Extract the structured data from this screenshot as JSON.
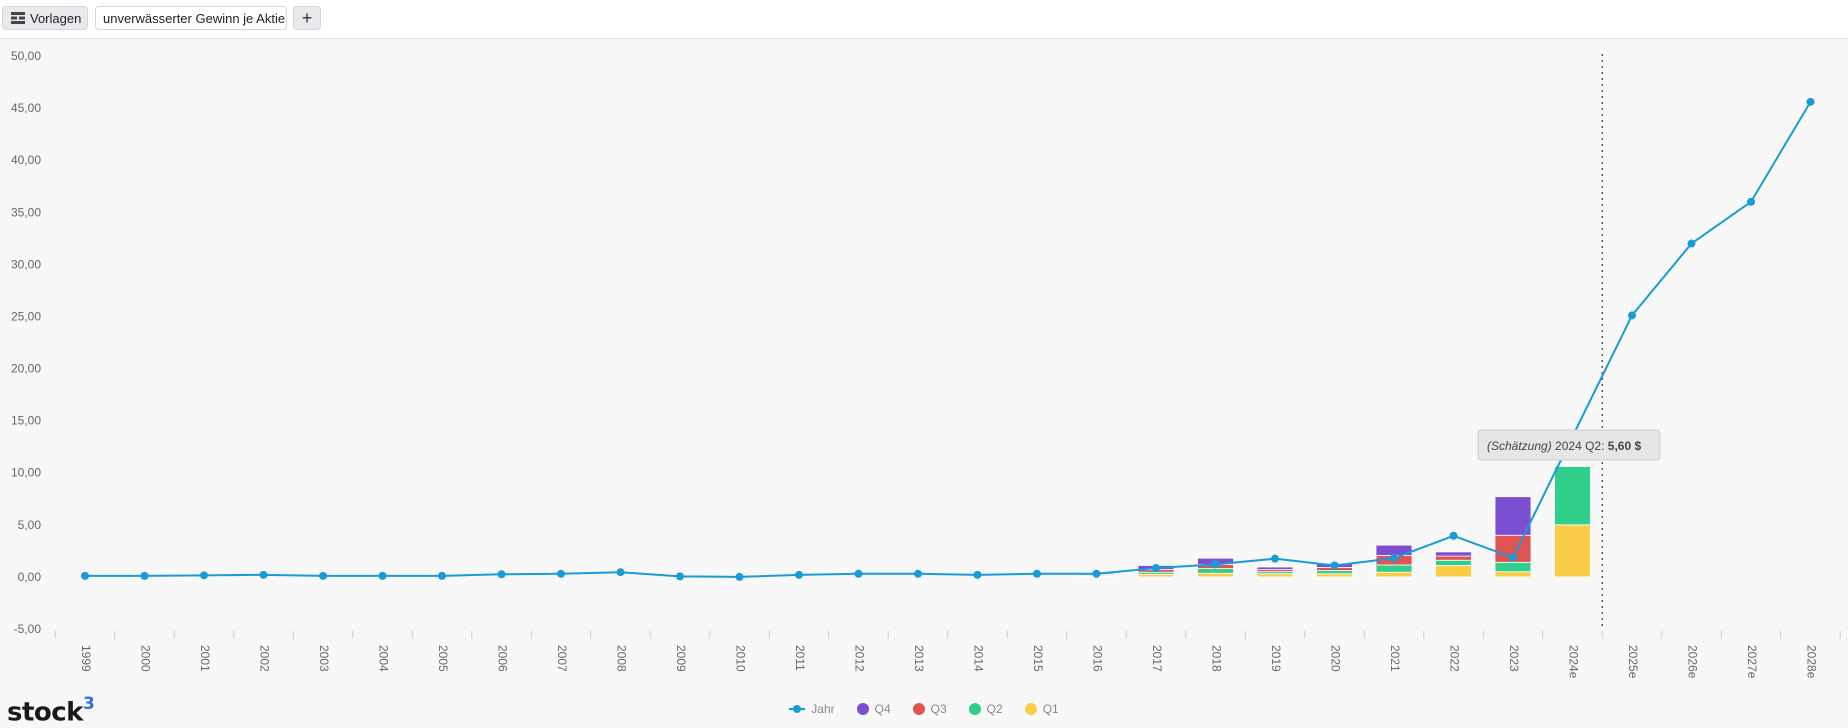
{
  "toolbar": {
    "templates_label": "Vorlagen",
    "metric_label": "unverwässerter Gewinn je Aktie",
    "add_label": "+"
  },
  "logo": {
    "text": "stock",
    "sup": "3"
  },
  "tooltip": {
    "prefix": "(Schätzung)",
    "label": "2024 Q2: ",
    "value": "5,60 $"
  },
  "colors": {
    "line": "#1a9bd7",
    "q4": "#7b4fd1",
    "q3": "#e05353",
    "q2": "#2fcf8b",
    "q1": "#fbcd47",
    "accent": "#2f6fe0"
  },
  "chart_data": {
    "type": "bar",
    "categories": [
      "1999",
      "2000",
      "2001",
      "2002",
      "2003",
      "2004",
      "2005",
      "2006",
      "2007",
      "2008",
      "2009",
      "2010",
      "2011",
      "2012",
      "2013",
      "2014",
      "2015",
      "2016",
      "2017",
      "2018",
      "2019",
      "2020",
      "2021",
      "2022",
      "2023",
      "2024e",
      "2025e",
      "2026e",
      "2027e",
      "2028e"
    ],
    "ylim": [
      -5,
      50
    ],
    "yticks": [
      "50,00",
      "45,00",
      "40,00",
      "35,00",
      "30,00",
      "25,00",
      "20,00",
      "15,00",
      "10,00",
      "5,00",
      "0,00",
      "-5,00"
    ],
    "ytick_values": [
      50,
      45,
      40,
      35,
      30,
      25,
      20,
      15,
      10,
      5,
      0,
      -5
    ],
    "forecast_divider_after": "2024e",
    "series": [
      {
        "name": "Jahr",
        "kind": "line",
        "values": [
          0.1,
          0.1,
          0.15,
          0.2,
          0.1,
          0.1,
          0.1,
          0.25,
          0.3,
          0.45,
          0.05,
          0.0,
          0.2,
          0.3,
          0.3,
          0.2,
          0.3,
          0.3,
          0.85,
          1.2,
          1.75,
          1.1,
          1.8,
          3.95,
          1.85,
          null,
          25.1,
          32.0,
          36.0,
          45.6
        ]
      },
      {
        "name": "Q1",
        "kind": "bar",
        "values": [
          null,
          null,
          null,
          null,
          null,
          null,
          null,
          null,
          null,
          null,
          null,
          null,
          null,
          null,
          null,
          null,
          null,
          0.05,
          0.25,
          0.35,
          0.3,
          0.3,
          0.45,
          1.1,
          0.5,
          5.0,
          null,
          null,
          null,
          null
        ]
      },
      {
        "name": "Q2",
        "kind": "bar",
        "values": [
          null,
          null,
          null,
          null,
          null,
          null,
          null,
          null,
          null,
          null,
          null,
          null,
          null,
          null,
          null,
          null,
          null,
          0.1,
          0.2,
          0.45,
          0.2,
          0.3,
          0.7,
          0.5,
          0.9,
          5.6,
          null,
          null,
          null,
          null
        ]
      },
      {
        "name": "Q3",
        "kind": "bar",
        "values": [
          null,
          null,
          null,
          null,
          null,
          null,
          null,
          null,
          null,
          null,
          null,
          null,
          null,
          null,
          null,
          null,
          null,
          0.1,
          0.25,
          0.4,
          0.2,
          0.3,
          0.9,
          0.4,
          2.6,
          null,
          null,
          null,
          null,
          null
        ]
      },
      {
        "name": "Q4",
        "kind": "bar",
        "values": [
          null,
          null,
          null,
          null,
          null,
          null,
          null,
          null,
          null,
          null,
          null,
          null,
          null,
          null,
          null,
          null,
          null,
          0.1,
          0.4,
          0.6,
          0.25,
          0.4,
          1.0,
          0.4,
          3.7,
          null,
          null,
          null,
          null,
          null
        ]
      }
    ],
    "legend": [
      "Jahr",
      "Q4",
      "Q3",
      "Q2",
      "Q1"
    ],
    "legend_position": "bottom"
  }
}
